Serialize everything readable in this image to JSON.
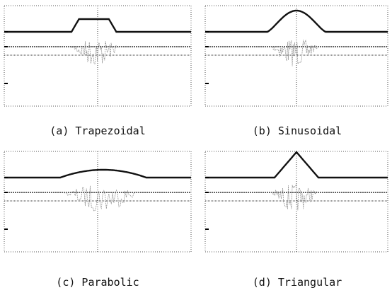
{
  "panels": [
    {
      "caption": "(a) Trapezoidal"
    },
    {
      "caption": "(b) Sinusoidal"
    },
    {
      "caption": "(c) Parabolic"
    },
    {
      "caption": "(d) Triangular"
    }
  ]
}
